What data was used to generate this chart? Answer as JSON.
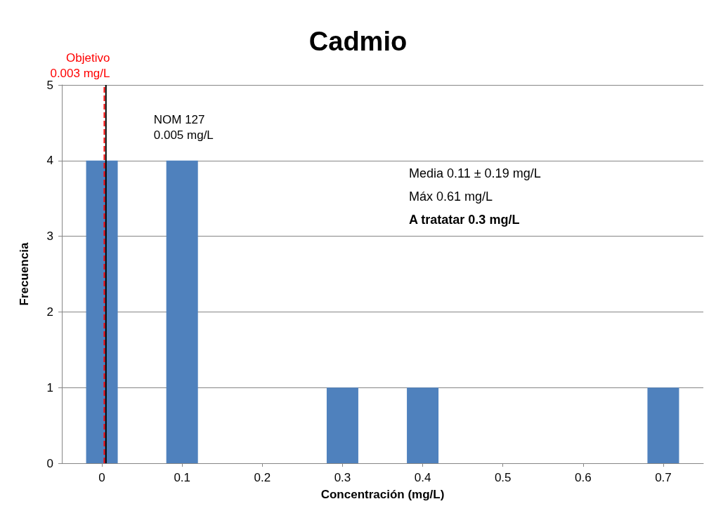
{
  "chart_data": {
    "type": "bar",
    "title": "Cadmio",
    "xlabel": "Concentración (mg/L)",
    "ylabel": "Frecuencia",
    "x": [
      0,
      0.1,
      0.2,
      0.3,
      0.4,
      0.5,
      0.6,
      0.7
    ],
    "values": [
      4,
      4,
      0,
      1,
      1,
      0,
      0,
      1
    ],
    "color": "#4f81bd",
    "xlim": [
      -0.05,
      0.75
    ],
    "xticks": [
      0,
      0.1,
      0.2,
      0.3,
      0.4,
      0.5,
      0.6,
      0.7
    ],
    "ylim": [
      0,
      5
    ],
    "yticks": [
      0,
      1,
      2,
      3,
      4,
      5
    ],
    "grid": "y",
    "ref_lines": [
      {
        "axis": "x",
        "value": 0.003,
        "label": "Objetivo\n0.003 mg/L",
        "color": "#ff0000",
        "line_style": "dashed"
      },
      {
        "axis": "x",
        "value": 0.005,
        "label": "NOM 127\n0.005 mg/L",
        "color": "#000000",
        "line_style": "solid"
      }
    ],
    "annotations": [
      "Media 0.11 ± 0.19 mg/L",
      "Máx 0.61 mg/L",
      "A tratatar 0.3 mg/L"
    ]
  }
}
